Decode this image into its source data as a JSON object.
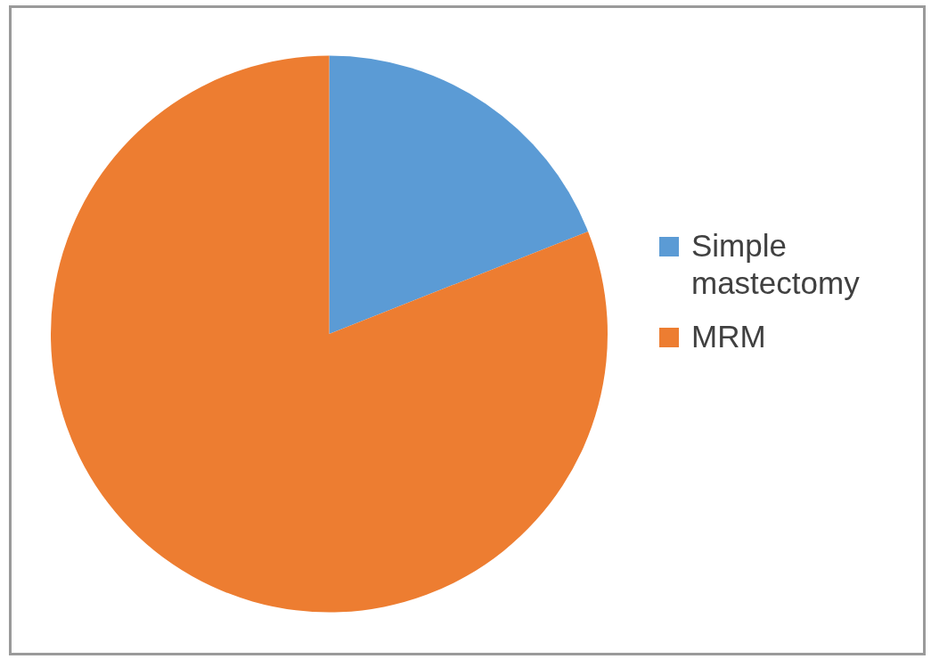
{
  "chart_data": {
    "type": "pie",
    "categories": [
      "Simple mastectomy",
      "MRM"
    ],
    "values": [
      19,
      81
    ],
    "colors": [
      "#5b9bd5",
      "#ed7d31"
    ],
    "legend": "right"
  }
}
